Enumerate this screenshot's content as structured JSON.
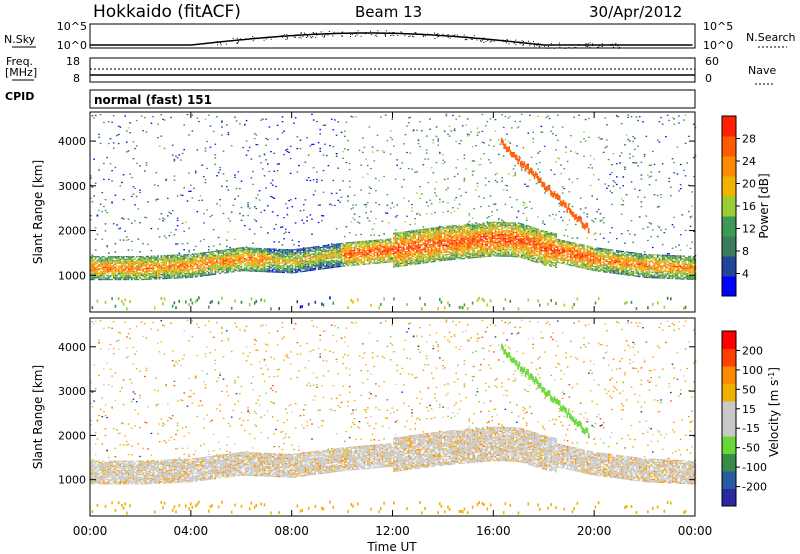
{
  "header": {
    "title": "Hokkaido (fitACF)",
    "beam": "Beam 13",
    "date": "30/Apr/2012"
  },
  "top_panels": {
    "nsky_label": "N.Sky",
    "nsearch_label": "N.Search",
    "nsky_ticks": [
      "10^5",
      "10^0"
    ],
    "nsearch_ticks": [
      "10^5",
      "10^0"
    ],
    "freq_label_1": "Freq.",
    "freq_label_2": "[MHz]",
    "freq_ticks": [
      "18",
      "8"
    ],
    "nave_label": "Nave",
    "nave_ticks": [
      "60",
      "0"
    ],
    "cpid_label": "CPID",
    "cpid_text": "normal (fast) 151"
  },
  "colors": {
    "power_scale": [
      "#0000ff",
      "#22449a",
      "#3a7d5a",
      "#3d9a55",
      "#9acd32",
      "#f0b400",
      "#ff8c00",
      "#ff5a00",
      "#ff2000"
    ],
    "velocity_scale": [
      "#ff0000",
      "#ff4000",
      "#ff8c00",
      "#f0b000",
      "#c8c8c8",
      "#c8c8c8",
      "#66d833",
      "#3a8a4a",
      "#2a5aa0",
      "#2a2aa0"
    ]
  },
  "chart_data": [
    {
      "type": "heatmap",
      "name": "Power",
      "ylabel": "Slant Range [km]",
      "yticks": [
        1000,
        2000,
        3000,
        4000
      ],
      "ylim": [
        180,
        4650
      ],
      "xticks": [
        "00:00",
        "04:00",
        "08:00",
        "12:00",
        "16:00",
        "20:00",
        "00:00"
      ],
      "colorbar_label": "Power [dB]",
      "colorbar_ticks": [
        "4",
        "8",
        "12",
        "16",
        "20",
        "24",
        "28"
      ],
      "colorbar_range": [
        0,
        30
      ],
      "main_band_center_km": {
        "x_hours": [
          0,
          2,
          4,
          6,
          8,
          10,
          12,
          14,
          16,
          17,
          18,
          20,
          22,
          24
        ],
        "y_km": [
          1150,
          1150,
          1200,
          1350,
          1300,
          1450,
          1550,
          1700,
          1800,
          1780,
          1600,
          1350,
          1200,
          1150
        ]
      }
    },
    {
      "type": "heatmap",
      "name": "Velocity",
      "ylabel": "Slant Range [km]",
      "yticks": [
        1000,
        2000,
        3000,
        4000
      ],
      "ylim": [
        180,
        4650
      ],
      "xticks": [
        "00:00",
        "04:00",
        "08:00",
        "12:00",
        "16:00",
        "20:00",
        "00:00"
      ],
      "xlabel": "Time UT",
      "colorbar_label": "Velocity [m s^-1]",
      "colorbar_ticks": [
        "200",
        "100",
        "50",
        "15",
        "-15",
        "-50",
        "-100",
        "-200"
      ],
      "colorbar_range": [
        -250,
        250
      ]
    }
  ]
}
